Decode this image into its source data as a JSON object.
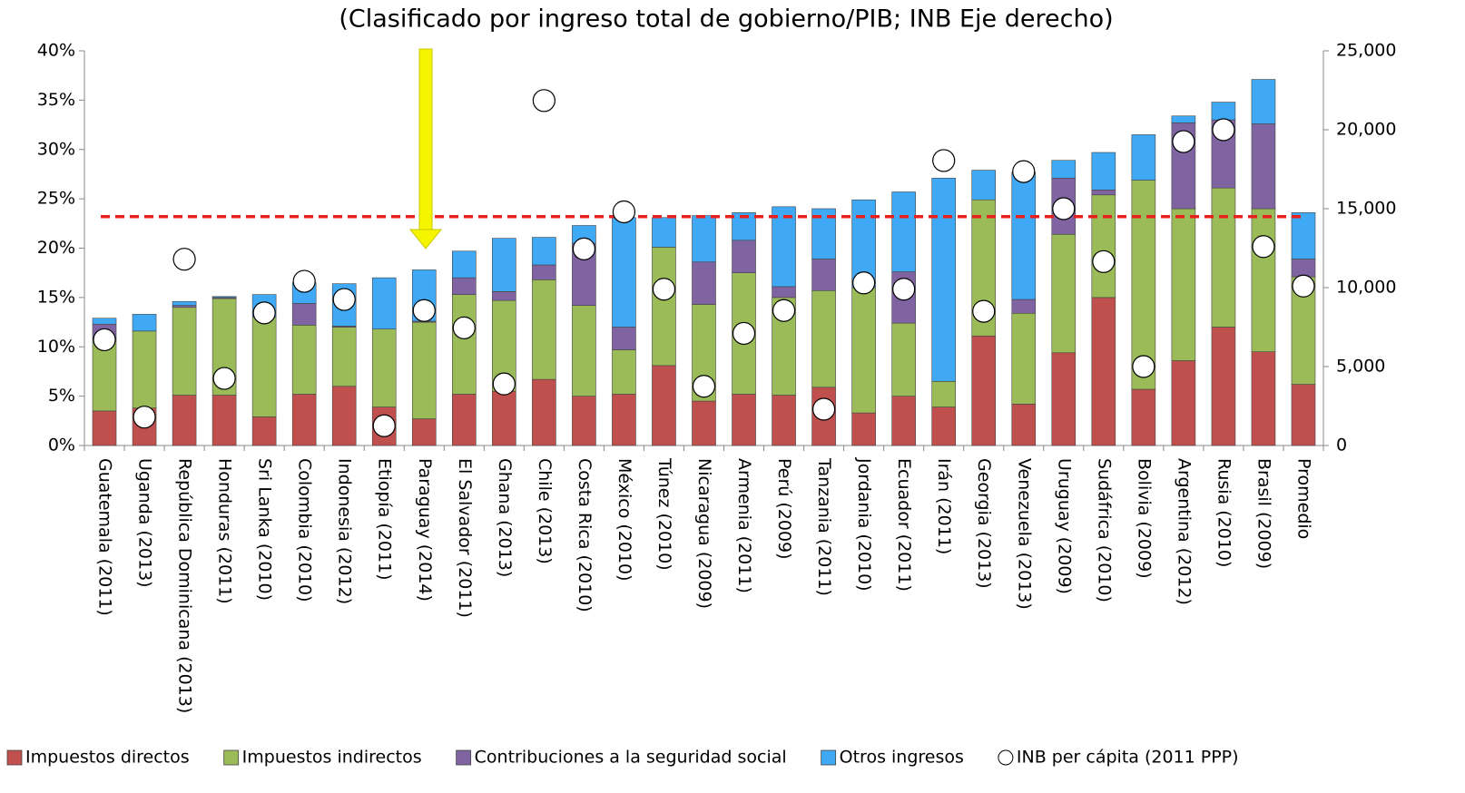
{
  "chart_data": {
    "type": "bar",
    "stacked": true,
    "title": "(Clasificado por ingreso total de gobierno/PIB; INB Eje derecho)",
    "categories": [
      "Guatemala (2011)",
      "Uganda (2013)",
      "República Dominicana (2013)",
      "Honduras (2011)",
      "Sri Lanka (2010)",
      "Colombia (2010)",
      "Indonesia (2012)",
      "Etiopía (2011)",
      "Paraguay (2014)",
      "El Salvador (2011)",
      "Ghana (2013)",
      "Chile (2013)",
      "Costa Rica (2010)",
      "México (2010)",
      "Túnez (2010)",
      "Nicaragua (2009)",
      "Armenia (2011)",
      "Perú (2009)",
      "Tanzania (2011)",
      "Jordania (2010)",
      "Ecuador (2011)",
      "Irán (2011)",
      "Georgia (2013)",
      "Venezuela (2013)",
      "Uruguay (2009)",
      "Sudáfrica (2010)",
      "Bolivia (2009)",
      "Argentina (2012)",
      "Rusia (2010)",
      "Brasil (2009)",
      "Promedio"
    ],
    "series": [
      {
        "name": "Impuestos directos",
        "color": "#c0504d",
        "values": [
          3.5,
          3.8,
          5.1,
          5.1,
          2.9,
          5.2,
          6.0,
          3.9,
          2.7,
          5.2,
          5.5,
          6.7,
          5.0,
          5.2,
          8.1,
          4.5,
          5.2,
          5.1,
          5.9,
          3.3,
          5.0,
          3.9,
          11.1,
          4.2,
          9.4,
          15.0,
          5.7,
          8.6,
          12.0,
          9.5,
          6.2
        ]
      },
      {
        "name": "Impuestos indirectos",
        "color": "#9bbb59",
        "values": [
          7.3,
          7.8,
          8.9,
          9.8,
          10.1,
          7.0,
          6.0,
          7.9,
          9.8,
          10.1,
          9.2,
          10.1,
          9.2,
          4.5,
          12.0,
          9.8,
          12.3,
          9.9,
          9.8,
          12.7,
          7.4,
          2.6,
          13.8,
          9.2,
          12.0,
          10.4,
          21.2,
          15.4,
          14.1,
          14.5,
          10.9
        ]
      },
      {
        "name": "Contribuciones a la seguridad social",
        "color": "#8064a2",
        "values": [
          1.5,
          0,
          0.2,
          0.1,
          0,
          2.2,
          0.1,
          0,
          0.1,
          1.7,
          0.9,
          1.5,
          6.3,
          2.3,
          0,
          4.3,
          3.3,
          1.1,
          3.2,
          0,
          5.2,
          0,
          0,
          1.4,
          5.7,
          0.5,
          0,
          8.7,
          6.9,
          8.6,
          1.8
        ]
      },
      {
        "name": "Otros ingresos",
        "color": "#3fa9f5",
        "values": [
          0.6,
          1.7,
          0.4,
          0.1,
          2.3,
          2.1,
          4.3,
          5.2,
          5.2,
          2.7,
          5.4,
          2.8,
          1.8,
          11.1,
          3.0,
          4.7,
          2.8,
          8.1,
          5.1,
          8.9,
          8.1,
          20.6,
          3.0,
          12.9,
          1.8,
          3.8,
          4.6,
          0.7,
          1.8,
          4.5,
          4.7
        ]
      },
      {
        "name": "INB per cápita (2011 PPP)",
        "type": "scatter",
        "axis": "y2",
        "color": "#ffffff",
        "values": [
          6700,
          1800,
          11800,
          4250,
          8400,
          10400,
          9250,
          1250,
          8550,
          7450,
          3900,
          21850,
          12450,
          14800,
          9900,
          3750,
          7100,
          8550,
          2300,
          10300,
          9900,
          18050,
          8500,
          17350,
          15000,
          11650,
          5000,
          19250,
          20000,
          12600,
          10100
        ]
      }
    ],
    "ylim": [
      0,
      40
    ],
    "yticks": [
      {
        "value": 0,
        "label": "0%"
      },
      {
        "value": 5,
        "label": "5%"
      },
      {
        "value": 10,
        "label": "10%"
      },
      {
        "value": 15,
        "label": "15%"
      },
      {
        "value": 20,
        "label": "20%"
      },
      {
        "value": 25,
        "label": "25%"
      },
      {
        "value": 30,
        "label": "30%"
      },
      {
        "value": 35,
        "label": "35%"
      },
      {
        "value": 40,
        "label": "40%"
      }
    ],
    "y2lim": [
      0,
      25000
    ],
    "y2ticks": [
      0,
      {
        "value": 5000,
        "label": "5,000"
      },
      {
        "value": 10000,
        "label": "10,000"
      },
      {
        "value": 15000,
        "label": "15,000"
      },
      {
        "value": 20000,
        "label": "20,000"
      },
      {
        "value": 25000,
        "label": "25,000"
      }
    ],
    "reference_line": {
      "value": 23.2,
      "color": "#e8201c"
    },
    "grid": false,
    "legend": "bottom"
  }
}
